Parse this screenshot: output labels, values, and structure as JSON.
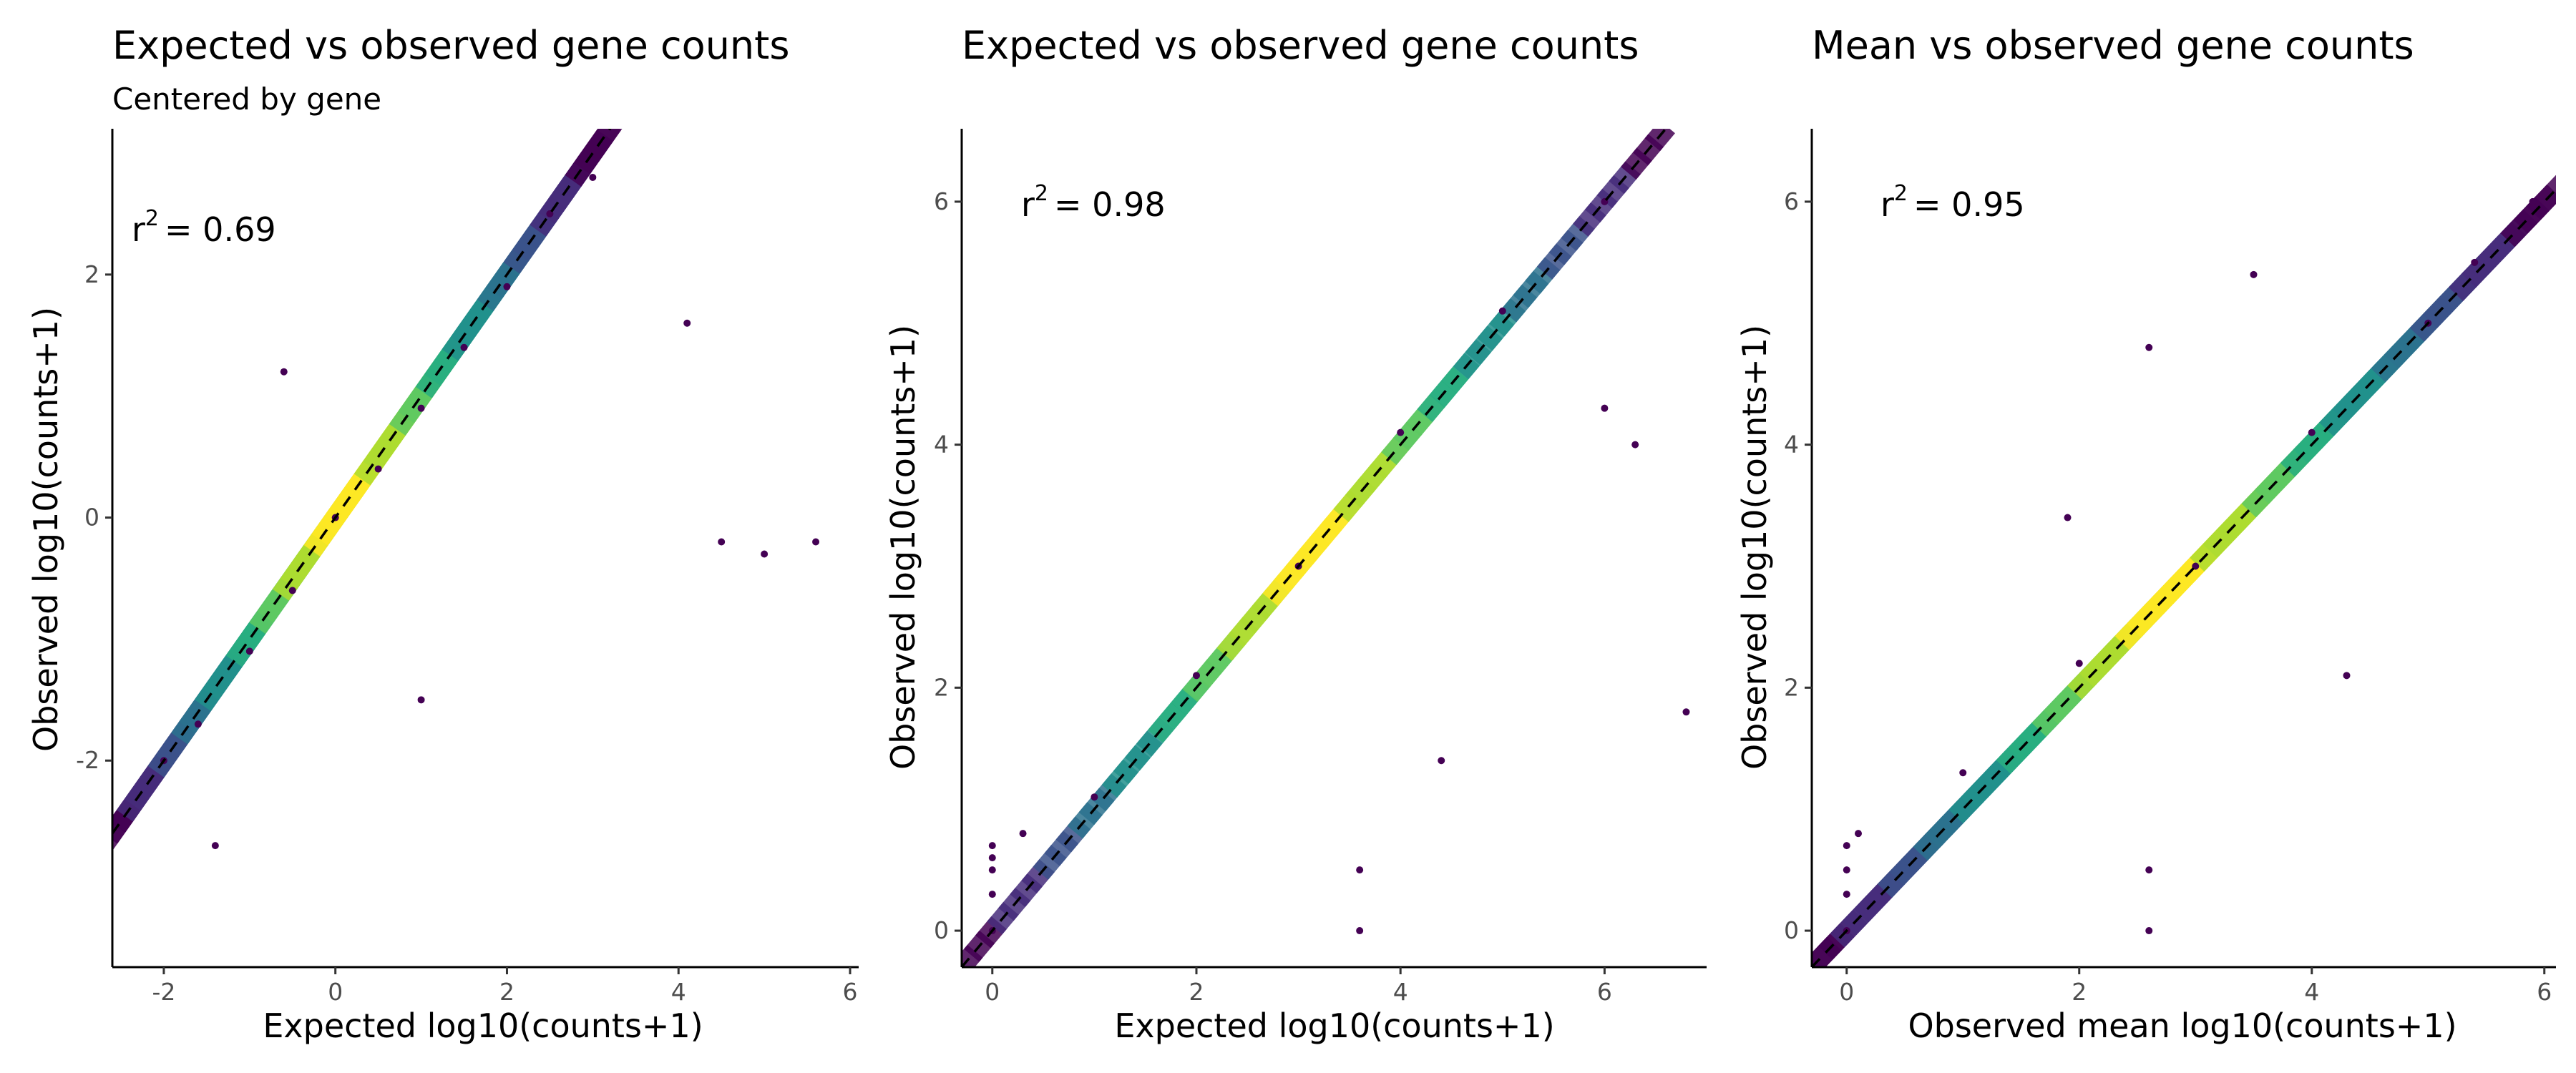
{
  "chart_data": [
    {
      "type": "scatter",
      "title": "Expected vs observed gene counts",
      "subtitle": "Centered by gene",
      "xlabel": "Expected log10(counts+1)",
      "ylabel": "Observed log10(counts+1)",
      "r2_prefix": "r",
      "r2_exp": "2",
      "r2_value": "= 0.69",
      "xlim": [
        -2.6,
        6.1
      ],
      "ylim": [
        -3.7,
        3.2
      ],
      "xticks": [
        -2,
        0,
        2,
        4,
        6
      ],
      "yticks": [
        -2,
        0,
        2
      ],
      "reference_line": "y = x (dashed)",
      "colormap": "viridis (point density)",
      "grid": false,
      "points": [
        [
          -2,
          -2
        ],
        [
          -1.6,
          -1.7
        ],
        [
          -1,
          -1.1
        ],
        [
          -0.5,
          -0.6
        ],
        [
          0,
          0
        ],
        [
          0.5,
          0.4
        ],
        [
          1,
          0.9
        ],
        [
          1.5,
          1.4
        ],
        [
          2,
          1.9
        ],
        [
          -1.4,
          -2.7
        ],
        [
          -0.6,
          1.2
        ],
        [
          1,
          -1.5
        ],
        [
          2.5,
          2.5
        ],
        [
          3,
          2.8
        ],
        [
          4.1,
          1.6
        ],
        [
          4.5,
          -0.2
        ],
        [
          5.0,
          -0.3
        ],
        [
          5.6,
          -0.2
        ]
      ]
    },
    {
      "type": "scatter",
      "title": "Expected vs observed gene counts",
      "xlabel": "Expected log10(counts+1)",
      "ylabel": "Observed log10(counts+1)",
      "r2_prefix": "r",
      "r2_exp": "2",
      "r2_value": "= 0.98",
      "xlim": [
        -0.3,
        7.0
      ],
      "ylim": [
        -0.3,
        6.6
      ],
      "xticks": [
        0,
        2,
        4,
        6
      ],
      "yticks": [
        0,
        2,
        4,
        6
      ],
      "reference_line": "y = x (dashed)",
      "colormap": "viridis (point density)",
      "grid": false,
      "points": [
        [
          0.3,
          0.8
        ],
        [
          1,
          1.1
        ],
        [
          2,
          2.1
        ],
        [
          3,
          3
        ],
        [
          4,
          4.1
        ],
        [
          5,
          5.1
        ],
        [
          6,
          6
        ],
        [
          0,
          0
        ],
        [
          0,
          0.3
        ],
        [
          0,
          0.5
        ],
        [
          0,
          0.6
        ],
        [
          0,
          0.7
        ],
        [
          3.6,
          0
        ],
        [
          3.6,
          0.5
        ],
        [
          4.4,
          1.4
        ],
        [
          6.8,
          1.8
        ],
        [
          6.3,
          4.0
        ],
        [
          6.0,
          4.3
        ]
      ]
    },
    {
      "type": "scatter",
      "title": "Mean vs observed gene counts",
      "xlabel": "Observed mean log10(counts+1)",
      "ylabel": "Observed log10(counts+1)",
      "r2_prefix": "r",
      "r2_exp": "2",
      "r2_value": "= 0.95",
      "xlim": [
        -0.3,
        6.1
      ],
      "ylim": [
        -0.3,
        6.6
      ],
      "xticks": [
        0,
        2,
        4,
        6
      ],
      "yticks": [
        0,
        2,
        4,
        6
      ],
      "reference_line": "y = x (dashed)",
      "colormap": "viridis (point density)",
      "grid": false,
      "points": [
        [
          0.1,
          0.8
        ],
        [
          1,
          1.3
        ],
        [
          2,
          2.2
        ],
        [
          3,
          3
        ],
        [
          4,
          4.1
        ],
        [
          5,
          5
        ],
        [
          5.4,
          5.5
        ],
        [
          5.9,
          6
        ],
        [
          0,
          0
        ],
        [
          0,
          0.3
        ],
        [
          0,
          0.5
        ],
        [
          0,
          0.7
        ],
        [
          2.6,
          0
        ],
        [
          2.6,
          0.5
        ],
        [
          1.9,
          3.4
        ],
        [
          3.5,
          5.4
        ],
        [
          2.6,
          4.8
        ],
        [
          4.3,
          2.1
        ]
      ]
    }
  ]
}
